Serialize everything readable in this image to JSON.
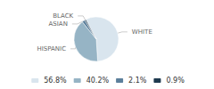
{
  "chart_data": {
    "type": "pie",
    "categories": [
      "WHITE",
      "HISPANIC",
      "ASIAN",
      "BLACK"
    ],
    "values": [
      56.8,
      40.2,
      2.1,
      0.9
    ],
    "value_labels": [
      "56.8%",
      "40.2%",
      "2.1%",
      "0.9%"
    ],
    "colors": [
      "#d9e5ee",
      "#96b4c5",
      "#5b7f9b",
      "#1e3a4f"
    ],
    "legend": "bottom"
  }
}
